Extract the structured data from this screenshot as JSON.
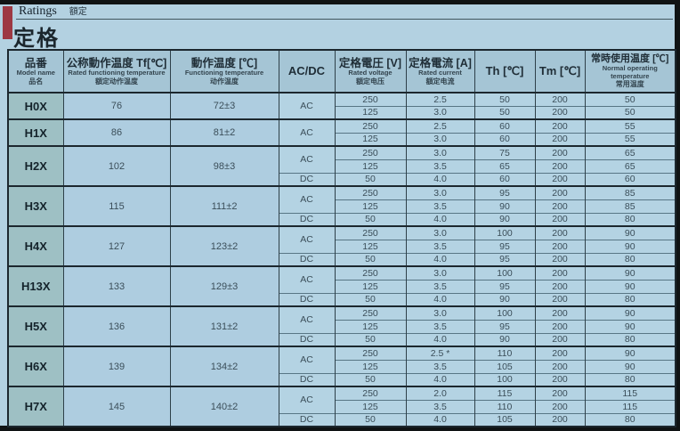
{
  "header": {
    "section_en": "Ratings",
    "section_cn": "額定",
    "title": "定格"
  },
  "table": {
    "headers": {
      "model": {
        "jp": "品番",
        "en": "Model name",
        "cn": "品名"
      },
      "rated_functioning_temp": {
        "jp": "公称動作温度 Tf[℃]",
        "en": "Rated functioning temperature",
        "cn": "額定动作温度"
      },
      "functioning_temp": {
        "jp": "動作温度 [℃]",
        "en": "Functioning temperature",
        "cn": "动作温度"
      },
      "acdc": {
        "jp": "AC/DC"
      },
      "rated_voltage": {
        "jp": "定格電圧 [V]",
        "en": "Rated voltage",
        "cn": "額定电压"
      },
      "rated_current": {
        "jp": "定格電流 [A]",
        "en": "Rated current",
        "cn": "額定电流"
      },
      "th": {
        "jp": "Th [℃]"
      },
      "tm": {
        "jp": "Tm [℃]"
      },
      "normal_operating_temp": {
        "jp": "常時使用温度 [℃]",
        "en": "Normal operating temperature",
        "cn": "常用温度"
      }
    },
    "models": [
      {
        "name": "H0X",
        "tf": "76",
        "ft": "72±3",
        "groups": [
          {
            "acdc": "AC",
            "rows": [
              [
                "250",
                "2.5",
                "50",
                "200",
                "50"
              ],
              [
                "125",
                "3.0",
                "50",
                "200",
                "50"
              ]
            ]
          }
        ]
      },
      {
        "name": "H1X",
        "tf": "86",
        "ft": "81±2",
        "groups": [
          {
            "acdc": "AC",
            "rows": [
              [
                "250",
                "2.5",
                "60",
                "200",
                "55"
              ],
              [
                "125",
                "3.0",
                "60",
                "200",
                "55"
              ]
            ]
          }
        ]
      },
      {
        "name": "H2X",
        "tf": "102",
        "ft": "98±3",
        "groups": [
          {
            "acdc": "AC",
            "rows": [
              [
                "250",
                "3.0",
                "75",
                "200",
                "65"
              ],
              [
                "125",
                "3.5",
                "65",
                "200",
                "65"
              ]
            ]
          },
          {
            "acdc": "DC",
            "rows": [
              [
                "50",
                "4.0",
                "60",
                "200",
                "60"
              ]
            ]
          }
        ]
      },
      {
        "name": "H3X",
        "tf": "115",
        "ft": "111±2",
        "groups": [
          {
            "acdc": "AC",
            "rows": [
              [
                "250",
                "3.0",
                "95",
                "200",
                "85"
              ],
              [
                "125",
                "3.5",
                "90",
                "200",
                "85"
              ]
            ]
          },
          {
            "acdc": "DC",
            "rows": [
              [
                "50",
                "4.0",
                "90",
                "200",
                "80"
              ]
            ]
          }
        ]
      },
      {
        "name": "H4X",
        "tf": "127",
        "ft": "123±2",
        "groups": [
          {
            "acdc": "AC",
            "rows": [
              [
                "250",
                "3.0",
                "100",
                "200",
                "90"
              ],
              [
                "125",
                "3.5",
                "95",
                "200",
                "90"
              ]
            ]
          },
          {
            "acdc": "DC",
            "rows": [
              [
                "50",
                "4.0",
                "95",
                "200",
                "80"
              ]
            ]
          }
        ]
      },
      {
        "name": "H13X",
        "tf": "133",
        "ft": "129±3",
        "groups": [
          {
            "acdc": "AC",
            "rows": [
              [
                "250",
                "3.0",
                "100",
                "200",
                "90"
              ],
              [
                "125",
                "3.5",
                "95",
                "200",
                "90"
              ]
            ]
          },
          {
            "acdc": "DC",
            "rows": [
              [
                "50",
                "4.0",
                "90",
                "200",
                "80"
              ]
            ]
          }
        ]
      },
      {
        "name": "H5X",
        "tf": "136",
        "ft": "131±2",
        "groups": [
          {
            "acdc": "AC",
            "rows": [
              [
                "250",
                "3.0",
                "100",
                "200",
                "90"
              ],
              [
                "125",
                "3.5",
                "95",
                "200",
                "90"
              ]
            ]
          },
          {
            "acdc": "DC",
            "rows": [
              [
                "50",
                "4.0",
                "90",
                "200",
                "80"
              ]
            ]
          }
        ]
      },
      {
        "name": "H6X",
        "tf": "139",
        "ft": "134±2",
        "groups": [
          {
            "acdc": "AC",
            "rows": [
              [
                "250",
                "2.5 *",
                "110",
                "200",
                "90"
              ],
              [
                "125",
                "3.5",
                "105",
                "200",
                "90"
              ]
            ]
          },
          {
            "acdc": "DC",
            "rows": [
              [
                "50",
                "4.0",
                "100",
                "200",
                "80"
              ]
            ]
          }
        ]
      },
      {
        "name": "H7X",
        "tf": "145",
        "ft": "140±2",
        "groups": [
          {
            "acdc": "AC",
            "rows": [
              [
                "250",
                "2.0",
                "115",
                "200",
                "115"
              ],
              [
                "125",
                "3.5",
                "110",
                "200",
                "115"
              ]
            ]
          },
          {
            "acdc": "DC",
            "rows": [
              [
                "50",
                "4.0",
                "105",
                "200",
                "80"
              ]
            ]
          }
        ]
      }
    ]
  }
}
